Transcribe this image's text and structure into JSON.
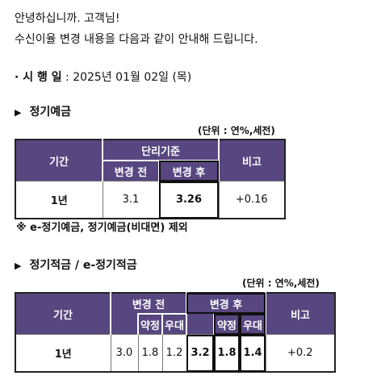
{
  "notice": {
    "greeting": "안녕하십니까. 고객님!",
    "intro": "수신이율 변경 내용을 다음과 같이 안내해 드립니다.",
    "effective_prefix": "· 시 행 일",
    "effective_date": " : 2025년 01월 02일 (목)"
  },
  "section1": {
    "marker": "▶",
    "title": "정기예금",
    "unit": "(단위 : 연%,세전)",
    "headers": {
      "period": "기간",
      "base_rate": "단리기준",
      "before": "변경 전",
      "after": "변경 후",
      "remarks": "비고"
    },
    "rows": [
      {
        "period": "1년",
        "before": "3.1",
        "after": "3.26",
        "remarks": "+0.16"
      }
    ],
    "note": "※ e-정기예금, 정기예금(비대면) 제외"
  },
  "section2": {
    "marker": "▶",
    "title": "정기적금 / e-정기적금",
    "unit": "(단위 : 연%,세전)",
    "headers": {
      "period": "기간",
      "before": "변경 전",
      "after": "변경 후",
      "remarks": "비고",
      "contract": "약정",
      "preferential": "우대"
    },
    "rows": [
      {
        "period": "1년",
        "before_total": "3.0",
        "before_contract": "1.8",
        "before_pref": "1.2",
        "after_total": "3.2",
        "after_contract": "1.8",
        "after_pref": "1.4",
        "remarks": "+0.2"
      }
    ]
  }
}
